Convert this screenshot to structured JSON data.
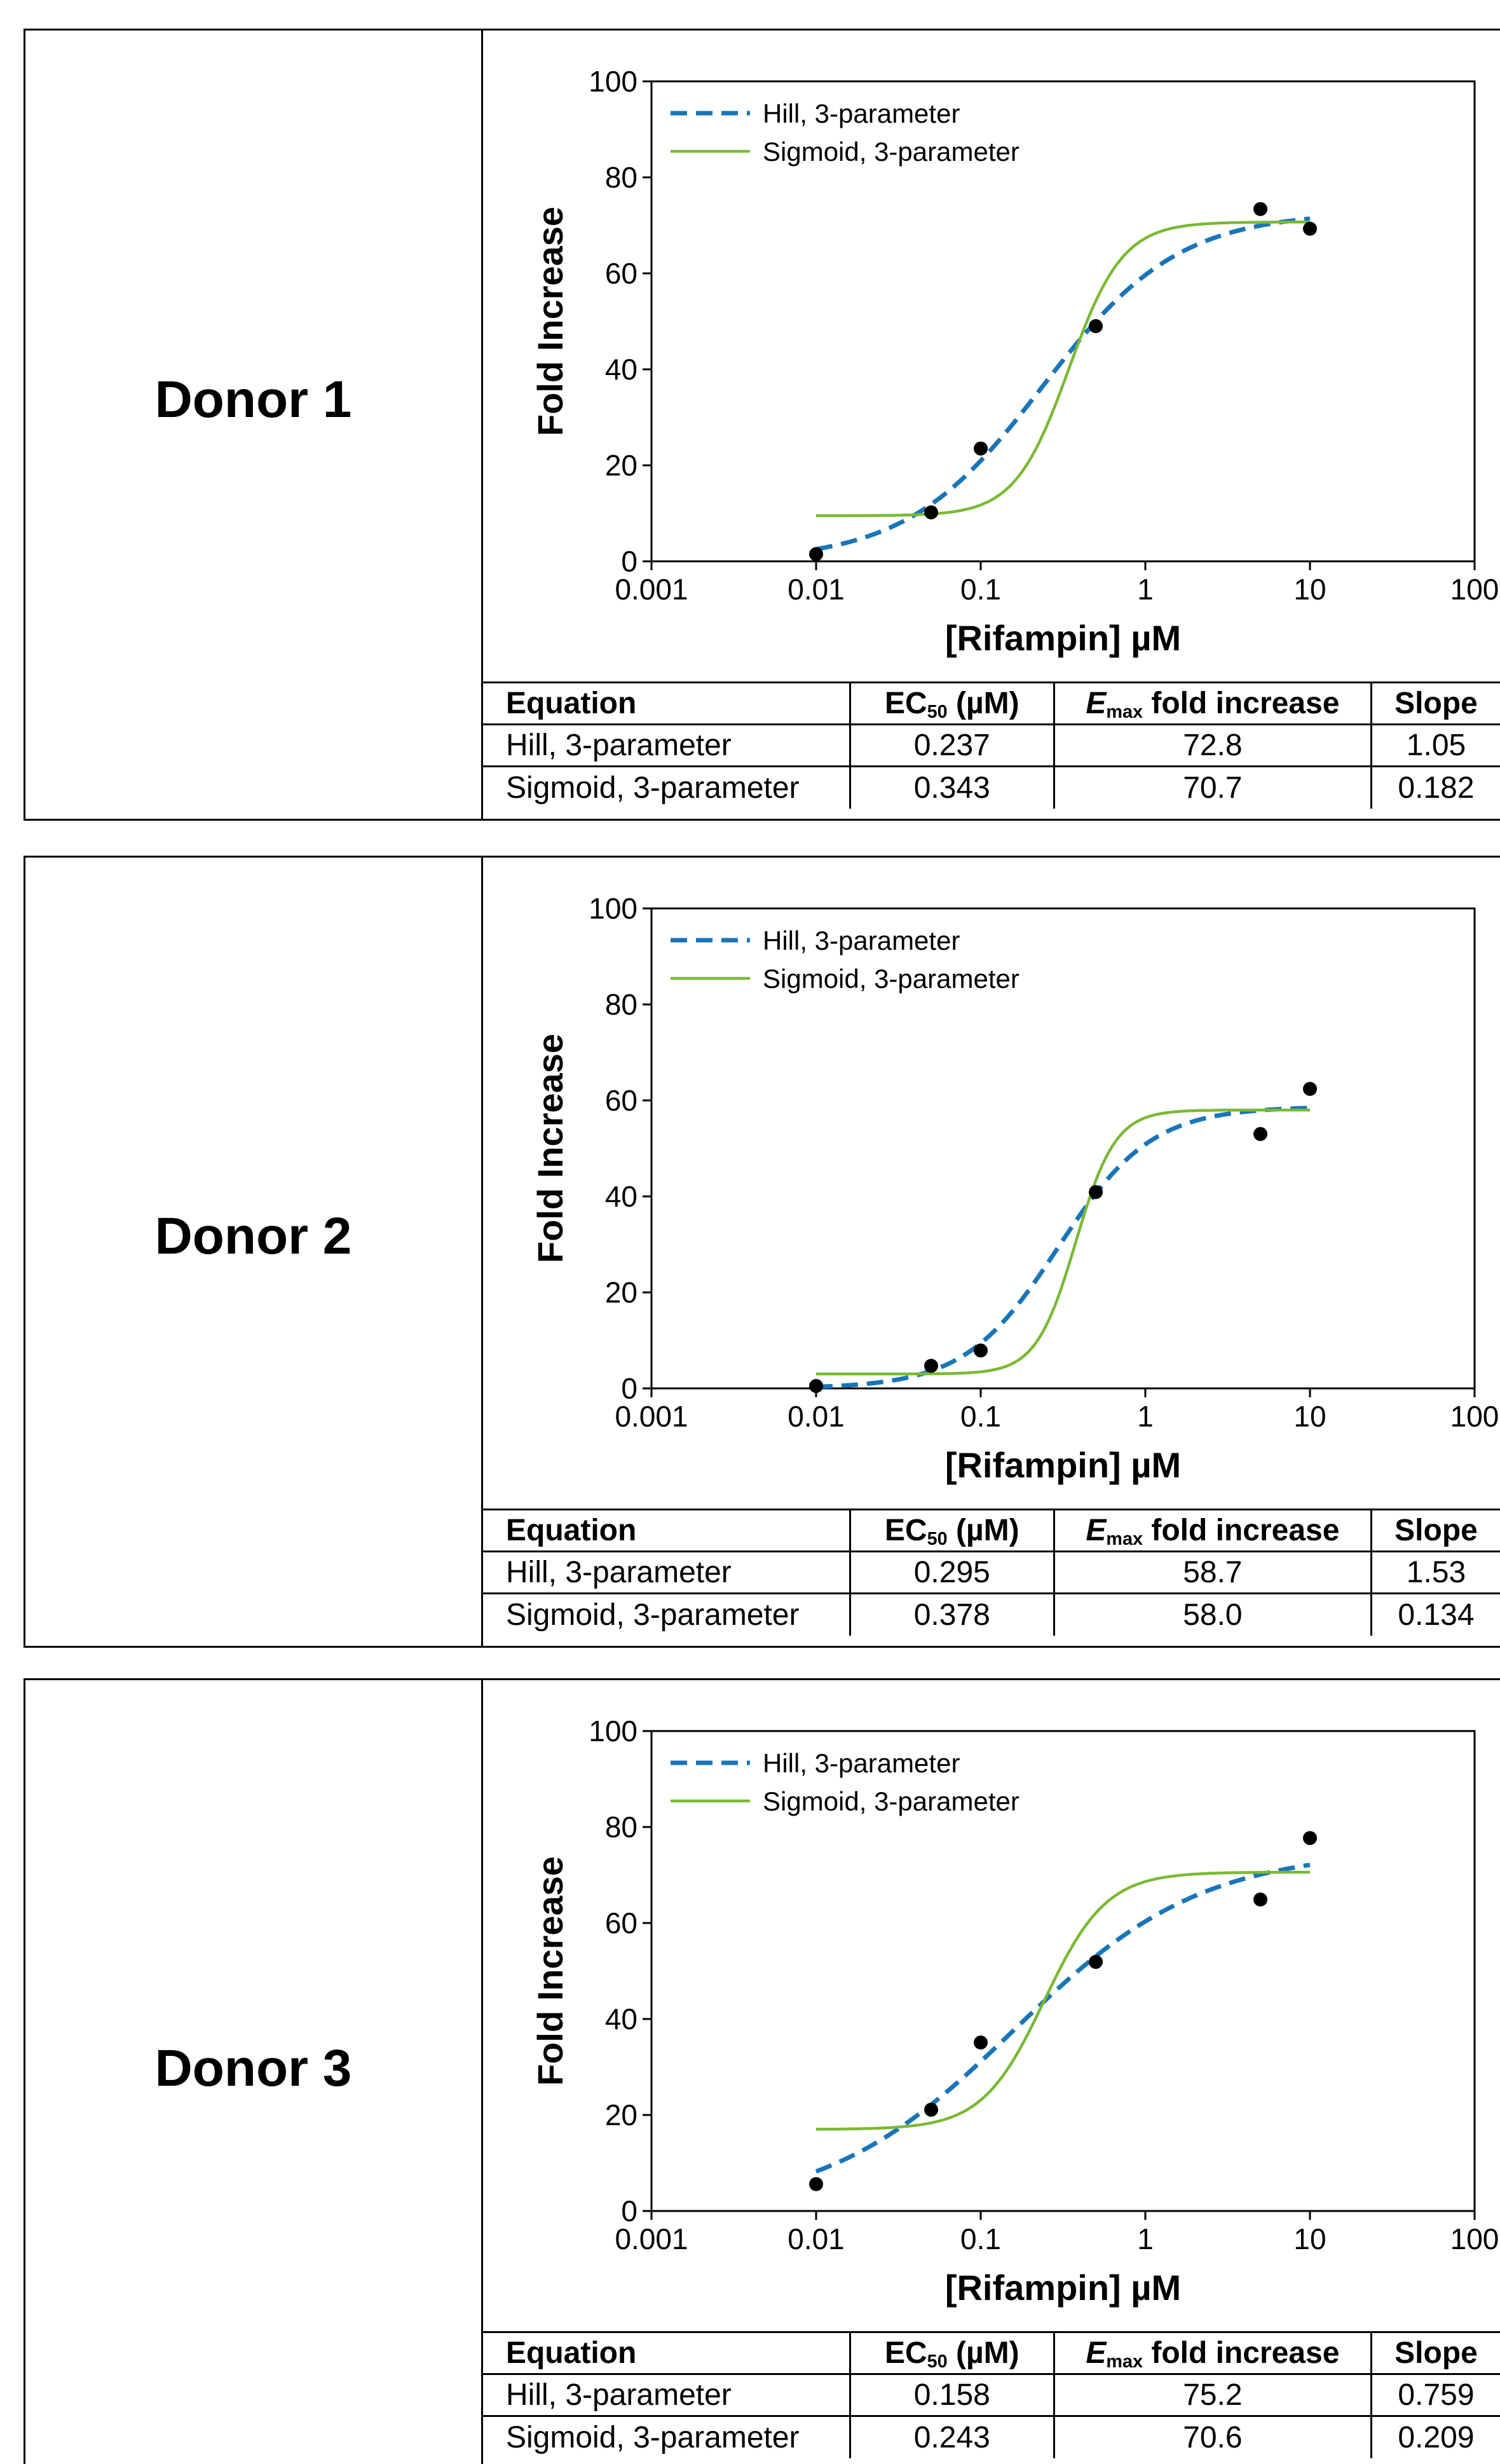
{
  "legend_labels": [
    "Hill, 3-parameter",
    "Sigmoid, 3-parameter"
  ],
  "axis": {
    "xlabel": "[Rifampin] µM",
    "ylabel": "Fold Increase",
    "x_ticks": [
      "0.001",
      "0.01",
      "0.1",
      "1",
      "10",
      "100"
    ],
    "y_ticks": [
      "0",
      "20",
      "40",
      "60",
      "80",
      "100"
    ]
  },
  "table_header": {
    "equation": "Equation",
    "ec50_main": "EC",
    "ec50_sub": "50",
    "ec50_unit": " (µM)",
    "emax_main": "E",
    "emax_sub": "max",
    "emax_rest": " fold increase",
    "slope": "Slope"
  },
  "colors": {
    "hill": "#1a75b8",
    "sigmoid": "#7ab934",
    "points": "#000000"
  },
  "donors": [
    {
      "label": "Donor 1",
      "rows": [
        {
          "equation": "Hill, 3-parameter",
          "ec50": "0.237",
          "emax": "72.8",
          "slope": "1.05"
        },
        {
          "equation": "Sigmoid, 3-parameter",
          "ec50": "0.343",
          "emax": "70.7",
          "slope": "0.182"
        }
      ]
    },
    {
      "label": "Donor 2",
      "rows": [
        {
          "equation": "Hill, 3-parameter",
          "ec50": "0.295",
          "emax": "58.7",
          "slope": "1.53"
        },
        {
          "equation": "Sigmoid, 3-parameter",
          "ec50": "0.378",
          "emax": "58.0",
          "slope": "0.134"
        }
      ]
    },
    {
      "label": "Donor 3",
      "rows": [
        {
          "equation": "Hill, 3-parameter",
          "ec50": "0.158",
          "emax": "75.2",
          "slope": "0.759"
        },
        {
          "equation": "Sigmoid, 3-parameter",
          "ec50": "0.243",
          "emax": "70.6",
          "slope": "0.209"
        }
      ]
    }
  ],
  "chart_data": [
    {
      "type": "line",
      "xlabel": "[Rifampin] µM",
      "ylabel": "Fold Increase",
      "x_scale": "log",
      "xlim": [
        0.001,
        100
      ],
      "ylim": [
        0,
        100
      ],
      "legend": "top-left",
      "series": [
        {
          "name": "Hill, 3-parameter",
          "style": "dashed",
          "color": "#1a75b8",
          "model": "hill",
          "ec50": 0.237,
          "emax": 72.8,
          "slope": 1.05
        },
        {
          "name": "Sigmoid, 3-parameter",
          "style": "solid",
          "color": "#7ab934",
          "model": "sigmoid",
          "ec50": 0.343,
          "emax": 70.7,
          "slope": 0.182,
          "baseline": 9.5
        }
      ],
      "points": {
        "x": [
          0.01,
          0.05,
          0.1,
          0.5,
          5,
          10
        ],
        "y": [
          1.5,
          10.2,
          23.5,
          49.0,
          73.4,
          69.3
        ]
      }
    },
    {
      "type": "line",
      "xlabel": "[Rifampin] µM",
      "ylabel": "Fold Increase",
      "x_scale": "log",
      "xlim": [
        0.001,
        100
      ],
      "ylim": [
        0,
        100
      ],
      "legend": "top-left",
      "series": [
        {
          "name": "Hill, 3-parameter",
          "style": "dashed",
          "color": "#1a75b8",
          "model": "hill",
          "ec50": 0.295,
          "emax": 58.7,
          "slope": 1.53
        },
        {
          "name": "Sigmoid, 3-parameter",
          "style": "solid",
          "color": "#7ab934",
          "model": "sigmoid",
          "ec50": 0.378,
          "emax": 58.0,
          "slope": 0.134,
          "baseline": 3.0
        }
      ],
      "points": {
        "x": [
          0.01,
          0.05,
          0.1,
          0.5,
          5,
          10
        ],
        "y": [
          0.5,
          4.7,
          7.9,
          40.9,
          53.0,
          62.4
        ]
      }
    },
    {
      "type": "line",
      "xlabel": "[Rifampin] µM",
      "ylabel": "Fold Increase",
      "x_scale": "log",
      "xlim": [
        0.001,
        100
      ],
      "ylim": [
        0,
        100
      ],
      "legend": "top-left",
      "series": [
        {
          "name": "Hill, 3-parameter",
          "style": "dashed",
          "color": "#1a75b8",
          "model": "hill",
          "ec50": 0.158,
          "emax": 75.2,
          "slope": 0.759
        },
        {
          "name": "Sigmoid, 3-parameter",
          "style": "solid",
          "color": "#7ab934",
          "model": "sigmoid",
          "ec50": 0.243,
          "emax": 70.6,
          "slope": 0.209,
          "baseline": 17.0
        }
      ],
      "points": {
        "x": [
          0.01,
          0.05,
          0.1,
          0.5,
          5,
          10
        ],
        "y": [
          5.6,
          21.1,
          35.1,
          51.9,
          64.9,
          77.7
        ]
      }
    }
  ]
}
